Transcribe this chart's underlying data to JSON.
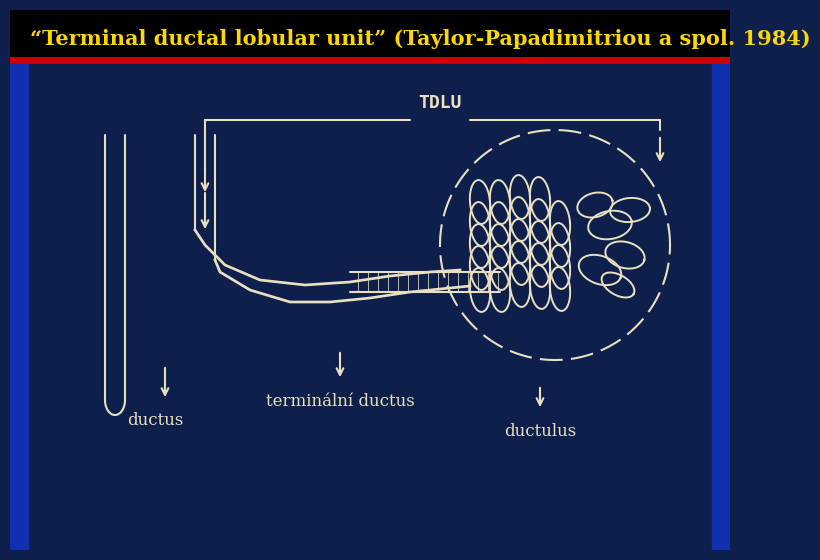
{
  "title": "“Terminal ductal lobular unit” (Taylor-Papadimitriou a spol. 1984)",
  "title_color": "#FFD700",
  "title_fontsize": 15,
  "bg_color": "#0d1f4a",
  "line_color": "#e8e0c0",
  "red_line_color": "#cc0000",
  "tdlu_label": "TDLU",
  "ductus_label": "ductus",
  "terminal_label": "terminální ductus",
  "ductulus_label": "ductulus",
  "label_color": "#e8e0c0",
  "label_fontsize": 12,
  "left_sidebar_color": "#1a2a8a",
  "right_sidebar_color": "#1a2a8a"
}
